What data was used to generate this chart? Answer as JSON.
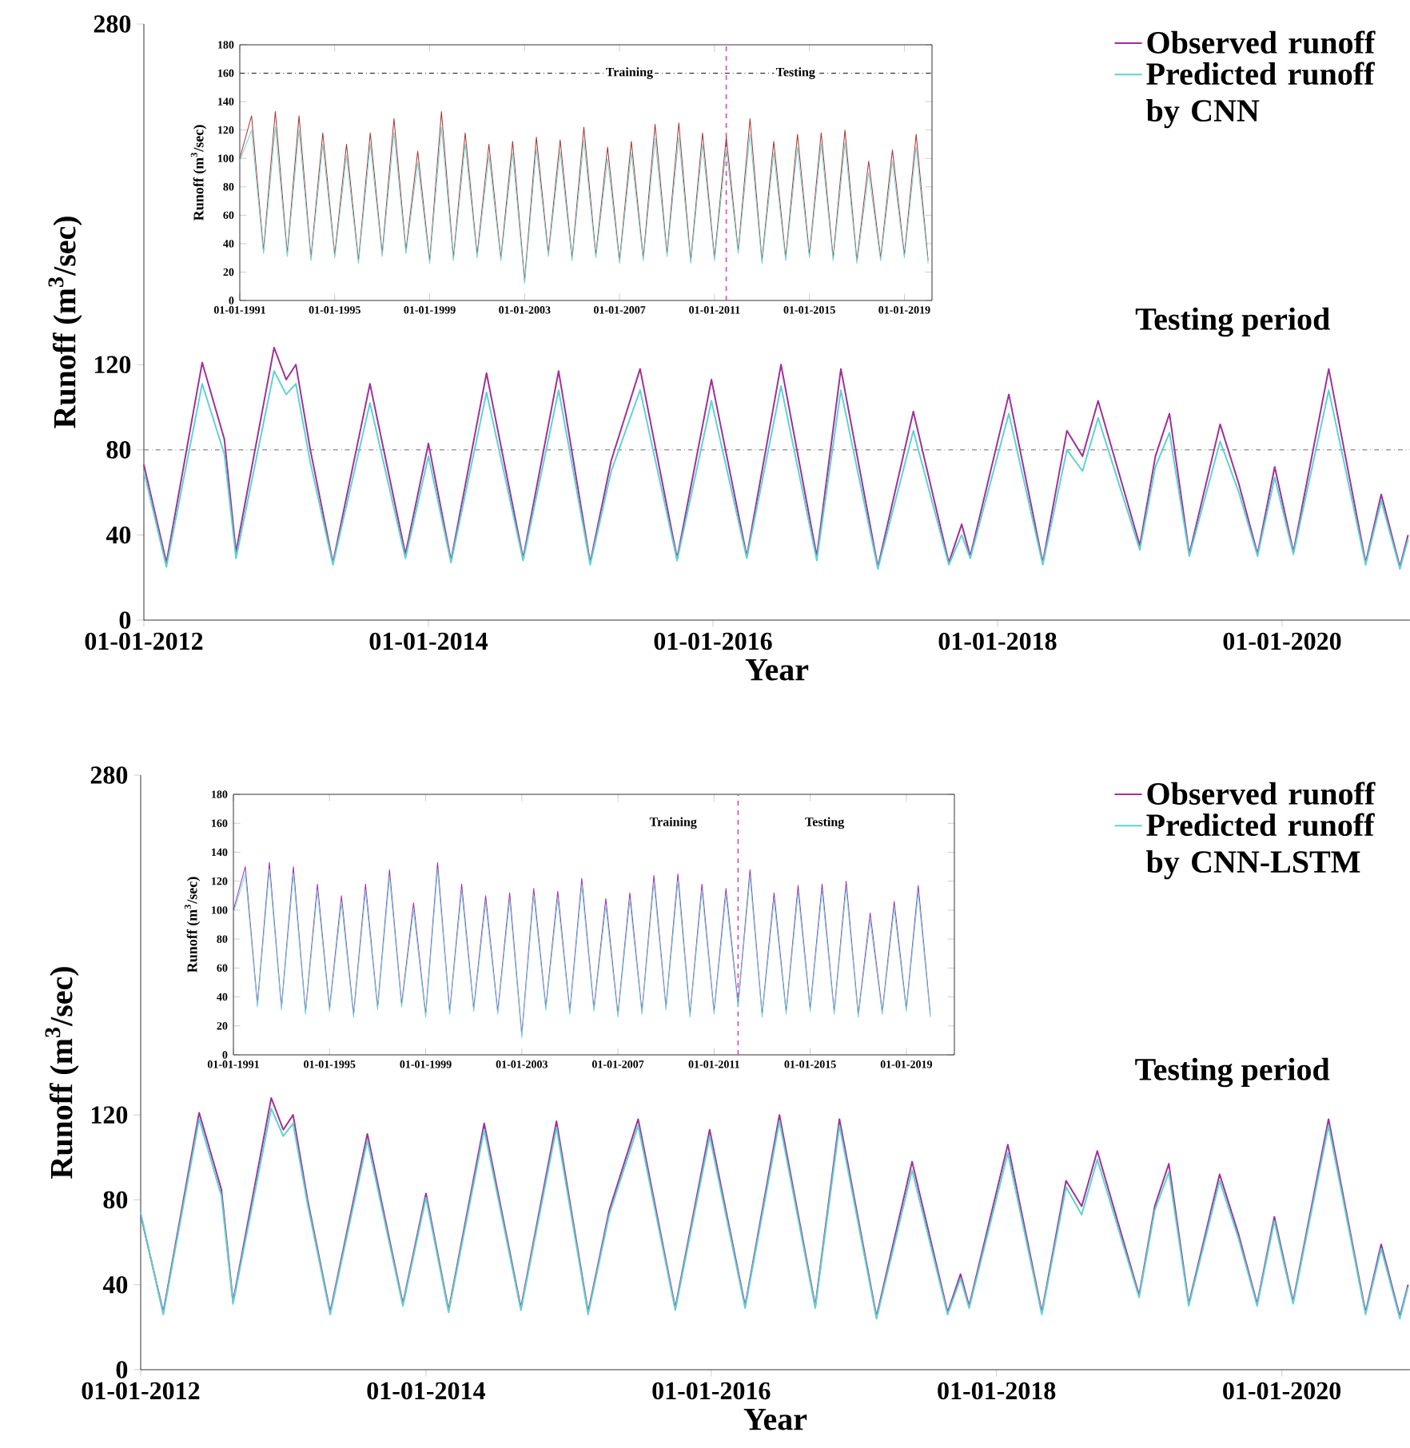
{
  "chart_data": [
    {
      "type": "line",
      "xlabel": "Year",
      "ylabel": "Runoff (m$^{3}$/sec)",
      "legend": "top right",
      "x": [
        "2012-01-01",
        "2012-02-28",
        "2012-05-30",
        "2012-07-26",
        "2012-08-25",
        "2012-12-01",
        "2013-01-01",
        "2013-01-26",
        "2013-03-04",
        "2013-05-01",
        "2013-08-04",
        "2013-11-03",
        "2014-01-01",
        "2014-02-28",
        "2014-05-30",
        "2014-09-01",
        "2014-12-01",
        "2015-02-20",
        "2015-04-15",
        "2015-06-28",
        "2015-10-01",
        "2015-12-28",
        "2016-03-28",
        "2016-06-24",
        "2016-09-24",
        "2016-11-25",
        "2017-02-28",
        "2017-05-30",
        "2017-08-29",
        "2017-10-01",
        "2017-10-23",
        "2018-01-30",
        "2018-04-27",
        "2018-06-28",
        "2018-08-07",
        "2018-09-16",
        "2019-01-01",
        "2019-02-10",
        "2019-03-18",
        "2019-05-08",
        "2019-07-26",
        "2019-09-12",
        "2019-10-30",
        "2019-12-13",
        "2020-01-30",
        "2020-04-30",
        "2020-08-03",
        "2020-09-12",
        "2020-10-30",
        "2020-11-20"
      ],
      "series": [
        {
          "name": "Observed runoff",
          "color": "#a0309a",
          "values": [
            73,
            27,
            121,
            85,
            32,
            128,
            113,
            120,
            80,
            27,
            111,
            31,
            83,
            28,
            116,
            29,
            117,
            27,
            75,
            118,
            29,
            113,
            30,
            120,
            30,
            118,
            25,
            98,
            27,
            45,
            30,
            106,
            27,
            89,
            77,
            103,
            35,
            77,
            97,
            31,
            92,
            64,
            31,
            72,
            32,
            118,
            27,
            59,
            25,
            40
          ]
        },
        {
          "name": "Predicted runoff by CNN",
          "color": "#5fd3d0",
          "values": [
            70,
            25,
            111,
            78,
            29,
            117,
            106,
            111,
            74,
            26,
            102,
            29,
            77,
            27,
            107,
            28,
            108,
            26,
            70,
            108,
            28,
            103,
            29,
            110,
            28,
            108,
            24,
            89,
            26,
            40,
            29,
            97,
            26,
            80,
            70,
            95,
            33,
            72,
            88,
            30,
            84,
            60,
            30,
            67,
            31,
            108,
            26,
            56,
            24,
            38
          ]
        }
      ],
      "xlim": [
        "2012-01-01",
        "2020-11-25"
      ],
      "ylim": [
        0,
        280
      ],
      "xticks": [
        {
          "value": "2012-01-01",
          "label": "01-01-2012"
        },
        {
          "value": "2014-01-01",
          "label": "01-01-2014"
        },
        {
          "value": "2016-01-01",
          "label": "01-01-2016"
        },
        {
          "value": "2018-01-01",
          "label": "01-01-2018"
        },
        {
          "value": "2020-01-01",
          "label": "01-01-2020"
        }
      ],
      "yticks": [
        0,
        40,
        80,
        120,
        280
      ],
      "ref_lines": [
        {
          "axis": "y",
          "value": 80,
          "color": "#888888",
          "line_style": "dashdot"
        }
      ],
      "annotations": [
        "Testing period"
      ]
    },
    {
      "type": "line",
      "ylabel": "Runoff (m$^{3}$/sec)",
      "x": [
        "1991-01-01",
        "1991-07-01",
        "1992-01-01",
        "1992-07-01",
        "1993-01-01",
        "1993-07-01",
        "1994-01-01",
        "1994-07-01",
        "1995-01-01",
        "1995-07-01",
        "1996-01-01",
        "1996-07-01",
        "1997-01-01",
        "1997-07-01",
        "1998-01-01",
        "1998-07-01",
        "1999-01-01",
        "1999-07-01",
        "2000-01-01",
        "2000-07-01",
        "2001-01-01",
        "2001-07-01",
        "2002-01-01",
        "2002-07-01",
        "2003-01-01",
        "2003-07-01",
        "2004-01-01",
        "2004-07-01",
        "2005-01-01",
        "2005-07-01",
        "2006-01-01",
        "2006-07-01",
        "2007-01-01",
        "2007-07-01",
        "2008-01-01",
        "2008-07-01",
        "2009-01-01",
        "2009-07-01",
        "2010-01-01",
        "2010-07-01",
        "2011-01-01",
        "2011-07-01",
        "2012-01-01",
        "2012-07-01",
        "2013-01-01",
        "2013-07-01",
        "2014-01-01",
        "2014-07-01",
        "2015-01-01",
        "2015-07-01",
        "2016-01-01",
        "2016-07-01",
        "2017-01-01",
        "2017-07-01",
        "2018-01-01",
        "2018-07-01",
        "2019-01-01",
        "2019-07-01",
        "2020-01-01"
      ],
      "series": [
        {
          "color": "#a83232",
          "values": [
            100,
            130,
            35,
            133,
            33,
            130,
            30,
            118,
            32,
            110,
            28,
            118,
            33,
            128,
            35,
            105,
            28,
            133,
            30,
            118,
            32,
            110,
            30,
            112,
            14,
            115,
            33,
            113,
            30,
            122,
            32,
            108,
            28,
            112,
            30,
            124,
            33,
            125,
            28,
            118,
            30,
            115,
            35,
            128,
            28,
            112,
            30,
            117,
            32,
            118,
            30,
            120,
            28,
            98,
            30,
            106,
            32,
            117,
            28
          ]
        },
        {
          "color": "#6fd6d2",
          "values": [
            98,
            120,
            33,
            122,
            31,
            120,
            28,
            110,
            30,
            102,
            26,
            110,
            31,
            118,
            33,
            97,
            26,
            122,
            28,
            110,
            30,
            102,
            28,
            104,
            12,
            107,
            31,
            105,
            28,
            113,
            30,
            100,
            26,
            104,
            28,
            114,
            31,
            115,
            26,
            110,
            28,
            107,
            33,
            117,
            26,
            104,
            28,
            108,
            30,
            110,
            28,
            111,
            26,
            90,
            28,
            98,
            30,
            108,
            26
          ]
        }
      ],
      "xlim": [
        "1991-01-01",
        "2020-03-01"
      ],
      "ylim": [
        0,
        180
      ],
      "xticks": [
        {
          "value": "1991-01-01",
          "label": "01-01-1991"
        },
        {
          "value": "1995-01-01",
          "label": "01-01-1995"
        },
        {
          "value": "1999-01-01",
          "label": "01-01-1999"
        },
        {
          "value": "2003-01-01",
          "label": "01-01-2003"
        },
        {
          "value": "2007-01-01",
          "label": "01-01-2007"
        },
        {
          "value": "2011-01-01",
          "label": "01-01-2011"
        },
        {
          "value": "2015-01-01",
          "label": "01-01-2015"
        },
        {
          "value": "2019-01-01",
          "label": "01-01-2019"
        }
      ],
      "yticks": [
        0,
        20,
        40,
        60,
        80,
        100,
        120,
        140,
        160,
        180
      ],
      "ref_lines": [
        {
          "axis": "y",
          "value": 160,
          "color": "#333333",
          "line_style": "dashdot"
        },
        {
          "axis": "x",
          "value": "2011-07-01",
          "color": "#e040c0",
          "line_style": "dashed"
        }
      ],
      "annotations": [
        {
          "text": "Training",
          "x": "2007-06-01",
          "y": 160
        },
        {
          "text": "Testing",
          "x": "2014-06-01",
          "y": 160
        }
      ]
    },
    {
      "type": "line",
      "xlabel": "Year",
      "ylabel": "Runoff (m$^{3}$/sec)",
      "legend": "top right",
      "x": [
        "2012-01-01",
        "2012-02-28",
        "2012-05-30",
        "2012-07-26",
        "2012-08-25",
        "2012-12-01",
        "2013-01-01",
        "2013-01-26",
        "2013-03-04",
        "2013-05-01",
        "2013-08-04",
        "2013-11-03",
        "2014-01-01",
        "2014-02-28",
        "2014-05-30",
        "2014-09-01",
        "2014-12-01",
        "2015-02-20",
        "2015-04-15",
        "2015-06-28",
        "2015-10-01",
        "2015-12-28",
        "2016-03-28",
        "2016-06-24",
        "2016-09-24",
        "2016-11-25",
        "2017-02-28",
        "2017-05-30",
        "2017-08-29",
        "2017-10-01",
        "2017-10-23",
        "2018-01-30",
        "2018-04-27",
        "2018-06-28",
        "2018-08-07",
        "2018-09-16",
        "2019-01-01",
        "2019-02-10",
        "2019-03-18",
        "2019-05-08",
        "2019-07-26",
        "2019-09-12",
        "2019-10-30",
        "2019-12-13",
        "2020-01-30",
        "2020-04-30",
        "2020-08-03",
        "2020-09-12",
        "2020-10-30",
        "2020-11-20"
      ],
      "series": [
        {
          "name": "Observed runoff",
          "color": "#a0309a",
          "values": [
            73,
            27,
            121,
            85,
            32,
            128,
            113,
            120,
            80,
            27,
            111,
            31,
            83,
            28,
            116,
            29,
            117,
            27,
            75,
            118,
            29,
            113,
            30,
            120,
            30,
            118,
            25,
            98,
            27,
            45,
            30,
            106,
            27,
            89,
            77,
            103,
            35,
            77,
            97,
            31,
            92,
            64,
            31,
            72,
            32,
            118,
            27,
            59,
            25,
            40
          ]
        },
        {
          "name": "Predicted runoff by CNN-LSTM",
          "color": "#5fd3d0",
          "values": [
            74,
            26,
            118,
            82,
            31,
            123,
            110,
            116,
            78,
            26,
            108,
            30,
            81,
            27,
            113,
            28,
            114,
            26,
            73,
            115,
            28,
            110,
            29,
            117,
            29,
            115,
            24,
            94,
            26,
            43,
            29,
            102,
            26,
            86,
            73,
            99,
            34,
            75,
            93,
            30,
            89,
            62,
            30,
            70,
            31,
            115,
            26,
            57,
            24,
            39
          ]
        }
      ],
      "xlim": [
        "2012-01-01",
        "2020-11-25"
      ],
      "ylim": [
        0,
        280
      ],
      "xticks": [
        {
          "value": "2012-01-01",
          "label": "01-01-2012"
        },
        {
          "value": "2014-01-01",
          "label": "01-01-2014"
        },
        {
          "value": "2016-01-01",
          "label": "01-01-2016"
        },
        {
          "value": "2018-01-01",
          "label": "01-01-2018"
        },
        {
          "value": "2020-01-01",
          "label": "01-01-2020"
        }
      ],
      "yticks": [
        0,
        40,
        80,
        120,
        280
      ],
      "annotations": [
        "Testing period"
      ]
    },
    {
      "type": "line",
      "ylabel": "Runoff (m$^{3}$/sec)",
      "x": [
        "1991-01-01",
        "1991-07-01",
        "1992-01-01",
        "1992-07-01",
        "1993-01-01",
        "1993-07-01",
        "1994-01-01",
        "1994-07-01",
        "1995-01-01",
        "1995-07-01",
        "1996-01-01",
        "1996-07-01",
        "1997-01-01",
        "1997-07-01",
        "1998-01-01",
        "1998-07-01",
        "1999-01-01",
        "1999-07-01",
        "2000-01-01",
        "2000-07-01",
        "2001-01-01",
        "2001-07-01",
        "2002-01-01",
        "2002-07-01",
        "2003-01-01",
        "2003-07-01",
        "2004-01-01",
        "2004-07-01",
        "2005-01-01",
        "2005-07-01",
        "2006-01-01",
        "2006-07-01",
        "2007-01-01",
        "2007-07-01",
        "2008-01-01",
        "2008-07-01",
        "2009-01-01",
        "2009-07-01",
        "2010-01-01",
        "2010-07-01",
        "2011-01-01",
        "2011-07-01",
        "2012-01-01",
        "2012-07-01",
        "2013-01-01",
        "2013-07-01",
        "2014-01-01",
        "2014-07-01",
        "2015-01-01",
        "2015-07-01",
        "2016-01-01",
        "2016-07-01",
        "2017-01-01",
        "2017-07-01",
        "2018-01-01",
        "2018-07-01",
        "2019-01-01",
        "2019-07-01",
        "2020-01-01"
      ],
      "series": [
        {
          "color": "#9a2fb0",
          "values": [
            100,
            130,
            35,
            133,
            33,
            130,
            30,
            118,
            32,
            110,
            28,
            118,
            33,
            128,
            35,
            105,
            28,
            133,
            30,
            118,
            32,
            110,
            30,
            112,
            14,
            115,
            33,
            113,
            30,
            122,
            32,
            108,
            28,
            112,
            30,
            124,
            33,
            125,
            28,
            118,
            30,
            115,
            35,
            128,
            28,
            112,
            30,
            117,
            32,
            118,
            30,
            120,
            28,
            98,
            30,
            106,
            32,
            117,
            28
          ]
        },
        {
          "color": "#6fd6d2",
          "values": [
            98,
            125,
            33,
            128,
            31,
            125,
            28,
            113,
            30,
            105,
            26,
            113,
            31,
            123,
            33,
            100,
            26,
            128,
            28,
            113,
            30,
            105,
            28,
            107,
            12,
            110,
            31,
            108,
            28,
            117,
            30,
            103,
            26,
            107,
            28,
            119,
            31,
            120,
            26,
            113,
            28,
            110,
            33,
            123,
            26,
            107,
            28,
            112,
            30,
            113,
            28,
            115,
            26,
            93,
            28,
            101,
            30,
            112,
            26
          ]
        }
      ],
      "xlim": [
        "1991-01-01",
        "2021-01-01"
      ],
      "ylim": [
        0,
        180
      ],
      "xticks": [
        {
          "value": "1991-01-01",
          "label": "01-01-1991"
        },
        {
          "value": "1995-01-01",
          "label": "01-01-1995"
        },
        {
          "value": "1999-01-01",
          "label": "01-01-1999"
        },
        {
          "value": "2003-01-01",
          "label": "01-01-2003"
        },
        {
          "value": "2007-01-01",
          "label": "01-01-2007"
        },
        {
          "value": "2011-01-01",
          "label": "01-01-2011"
        },
        {
          "value": "2015-01-01",
          "label": "01-01-2015"
        },
        {
          "value": "2019-01-01",
          "label": "01-01-2019"
        }
      ],
      "yticks": [
        0,
        20,
        40,
        60,
        80,
        100,
        120,
        140,
        160,
        180
      ],
      "ref_lines": [
        {
          "axis": "x",
          "value": "2012-01-01",
          "color": "#e040c0",
          "line_style": "dashed"
        }
      ],
      "annotations": [
        "Training",
        "Testing"
      ]
    }
  ]
}
